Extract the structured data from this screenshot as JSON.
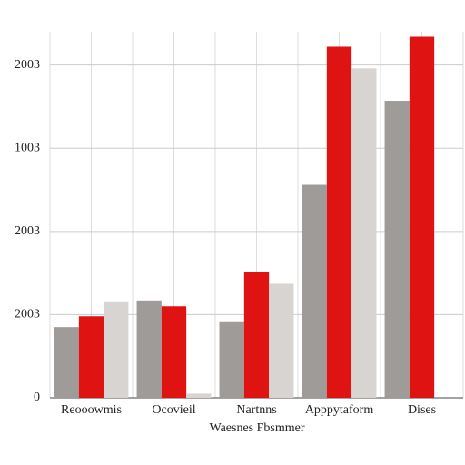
{
  "chart_data": {
    "type": "bar",
    "x_label": "Waesnes Fbsmmer",
    "categories": [
      "Reooowmis",
      "Ocovieil",
      "Nartnns",
      "Apppytaform",
      "Dises"
    ],
    "series": [
      {
        "color": "#9f9b99",
        "values": [
          0.85,
          1.17,
          0.92,
          2.56,
          3.57
        ]
      },
      {
        "color": "#e01313",
        "values": [
          0.98,
          1.1,
          1.51,
          4.22,
          4.34
        ]
      },
      {
        "color": "#d8d4d1",
        "values": [
          1.16,
          0.05,
          1.37,
          3.96,
          null
        ]
      }
    ],
    "ylim": [
      0,
      4.4
    ],
    "yticks": [
      {
        "value": 0,
        "label": "0"
      },
      {
        "value": 1,
        "label": "2003"
      },
      {
        "value": 2,
        "label": "2003"
      },
      {
        "value": 3,
        "label": "1003"
      },
      {
        "value": 4,
        "label": "2003"
      }
    ],
    "grid": true
  }
}
